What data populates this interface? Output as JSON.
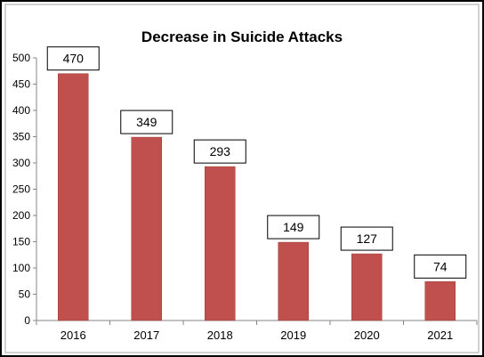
{
  "chart_data": {
    "type": "bar",
    "title": "Decrease in Suicide Attacks",
    "xlabel": "",
    "ylabel": "",
    "categories": [
      "2016",
      "2017",
      "2018",
      "2019",
      "2020",
      "2021"
    ],
    "values": [
      470,
      349,
      293,
      149,
      127,
      74
    ],
    "data_labels": [
      "470",
      "349",
      "293",
      "149",
      "127",
      "74"
    ],
    "ylim": [
      0,
      500
    ],
    "yticks": [
      "0",
      "50",
      "100",
      "150",
      "200",
      "250",
      "300",
      "350",
      "400",
      "450",
      "500"
    ],
    "grid": false,
    "legend": "none",
    "bar_color": "#c0504d",
    "bar_edge_color": "#9b3a37",
    "label_box_color": "#ffffff"
  }
}
